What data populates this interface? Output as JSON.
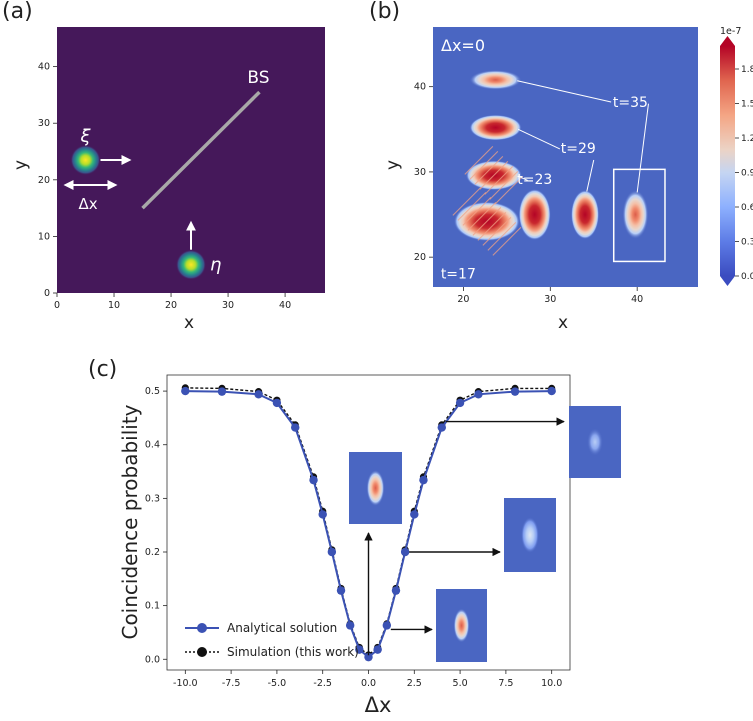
{
  "panel_labels": {
    "a": "(a)",
    "b": "(b)",
    "c": "(c)"
  },
  "colors": {
    "viridis_bg": "#45185a",
    "coolwarm_bg": "#4a66c2",
    "sim_line": "#111111",
    "analytic_line": "#3b52b4",
    "white": "#ffffff"
  },
  "chart_data": [
    {
      "type": "scatter",
      "title": "",
      "xlabel": "x",
      "ylabel": "y",
      "xlim": [
        0,
        47
      ],
      "ylim": [
        0,
        47
      ],
      "x_ticks": [
        0,
        10,
        20,
        30,
        40
      ],
      "y_ticks": [
        0,
        10,
        20,
        30,
        40
      ],
      "bs_line": {
        "from": [
          15,
          15
        ],
        "to": [
          35.5,
          35.5
        ],
        "label": "BS"
      },
      "packets": [
        {
          "name": "xi",
          "label": "ξ",
          "x": 5,
          "y": 23.5
        },
        {
          "name": "eta",
          "label": "η",
          "x": 23.5,
          "y": 5
        }
      ],
      "delta_label": "Δx"
    },
    {
      "type": "heatmap",
      "title": "",
      "xlabel": "x",
      "ylabel": "y",
      "xlim": [
        16.5,
        47
      ],
      "ylim": [
        16.5,
        47
      ],
      "x_ticks": [
        20,
        30,
        40
      ],
      "y_ticks": [
        20,
        30,
        40
      ],
      "header": "Δx=0",
      "colorbar": {
        "exponent": "1e-7",
        "ticks": [
          "0.0",
          "0.3",
          "0.6",
          "0.9",
          "1.2",
          "1.5",
          "1.8"
        ],
        "range": [
          0,
          2.0
        ]
      },
      "time_labels": [
        "t=35",
        "t=29",
        "t=23",
        "t=17"
      ],
      "blobs": [
        {
          "t": 35,
          "x": 23.7,
          "y": 40.8,
          "rx": 2.6,
          "ry": 1.0,
          "peak": 1.25
        },
        {
          "t": 29,
          "x": 23.7,
          "y": 35.2,
          "rx": 2.6,
          "ry": 1.3,
          "peak": 2.0
        },
        {
          "t": 23,
          "x": 23.5,
          "y": 29.6,
          "rx": 2.8,
          "ry": 1.5,
          "peak": 2.0
        },
        {
          "t": 17,
          "x": 22.7,
          "y": 24.2,
          "rx": 3.3,
          "ry": 2.0,
          "peak": 2.0
        },
        {
          "t": 23,
          "x": 28.2,
          "y": 25.0,
          "rx": 1.6,
          "ry": 2.6,
          "peak": 2.0
        },
        {
          "t": 29,
          "x": 34.0,
          "y": 25.0,
          "rx": 1.4,
          "ry": 2.5,
          "peak": 2.0
        },
        {
          "t": 35,
          "x": 39.8,
          "y": 25.0,
          "rx": 1.3,
          "ry": 2.5,
          "peak": 1.25
        }
      ],
      "highlight_box": {
        "x0": 37.3,
        "x1": 43.2,
        "y0": 19.5,
        "y1": 30.3
      }
    },
    {
      "type": "line",
      "title": "",
      "xlabel": "Δx",
      "ylabel": "Coincidence probability",
      "xlim": [
        -11,
        11
      ],
      "ylim": [
        -0.02,
        0.53
      ],
      "x_ticks": [
        "-10.0",
        "-7.5",
        "-5.0",
        "-2.5",
        "0.0",
        "2.5",
        "5.0",
        "7.5",
        "10.0"
      ],
      "y_ticks": [
        "0.0",
        "0.1",
        "0.2",
        "0.3",
        "0.4",
        "0.5"
      ],
      "x": [
        -10,
        -8,
        -6,
        -5,
        -4,
        -3,
        -2.5,
        -2,
        -1.5,
        -1,
        -0.5,
        0,
        0.5,
        1,
        1.5,
        2,
        2.5,
        3,
        4,
        5,
        6,
        8,
        10
      ],
      "series": [
        {
          "name": "Analytical solution",
          "values": [
            0.5,
            0.499,
            0.494,
            0.478,
            0.432,
            0.334,
            0.27,
            0.2,
            0.128,
            0.063,
            0.018,
            0.004,
            0.018,
            0.063,
            0.128,
            0.2,
            0.27,
            0.334,
            0.432,
            0.478,
            0.494,
            0.499,
            0.5
          ]
        },
        {
          "name": "Simulation (this work)",
          "values": [
            0.506,
            0.505,
            0.499,
            0.483,
            0.437,
            0.34,
            0.276,
            0.204,
            0.132,
            0.066,
            0.022,
            0.008,
            0.022,
            0.066,
            0.132,
            0.204,
            0.276,
            0.34,
            0.437,
            0.483,
            0.499,
            0.505,
            0.505
          ]
        }
      ],
      "insets": [
        {
          "point_x": 0,
          "point_y": 0.0
        },
        {
          "point_x": 1,
          "point_y": 0.063
        },
        {
          "point_x": 2,
          "point_y": 0.2
        },
        {
          "point_x": 4,
          "point_y": 0.432
        }
      ]
    }
  ]
}
